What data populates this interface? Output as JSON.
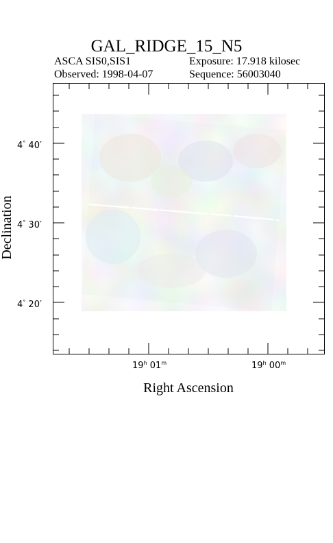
{
  "title": "GAL_RIDGE_15_N5",
  "instrument": "ASCA SIS0,SIS1",
  "exposure": "Exposure: 17.918 kilosec",
  "observed": "Observed: 1998-04-07",
  "sequence": "Sequence: 56003040",
  "axes": {
    "xlabel": "Right Ascension",
    "ylabel": "Declination",
    "x_ticks": [
      {
        "h": "19",
        "m": "01",
        "unit_h": "h",
        "unit_m": "m"
      },
      {
        "h": "19",
        "m": "00",
        "unit_h": "h",
        "unit_m": "m"
      }
    ],
    "y_ticks": [
      {
        "deg": "4",
        "min": "40"
      },
      {
        "deg": "4",
        "min": "30"
      },
      {
        "deg": "4",
        "min": "20"
      }
    ]
  },
  "colors": {
    "background": "#ffffff",
    "frame": "#000000",
    "image_base": "#e4ece9"
  }
}
